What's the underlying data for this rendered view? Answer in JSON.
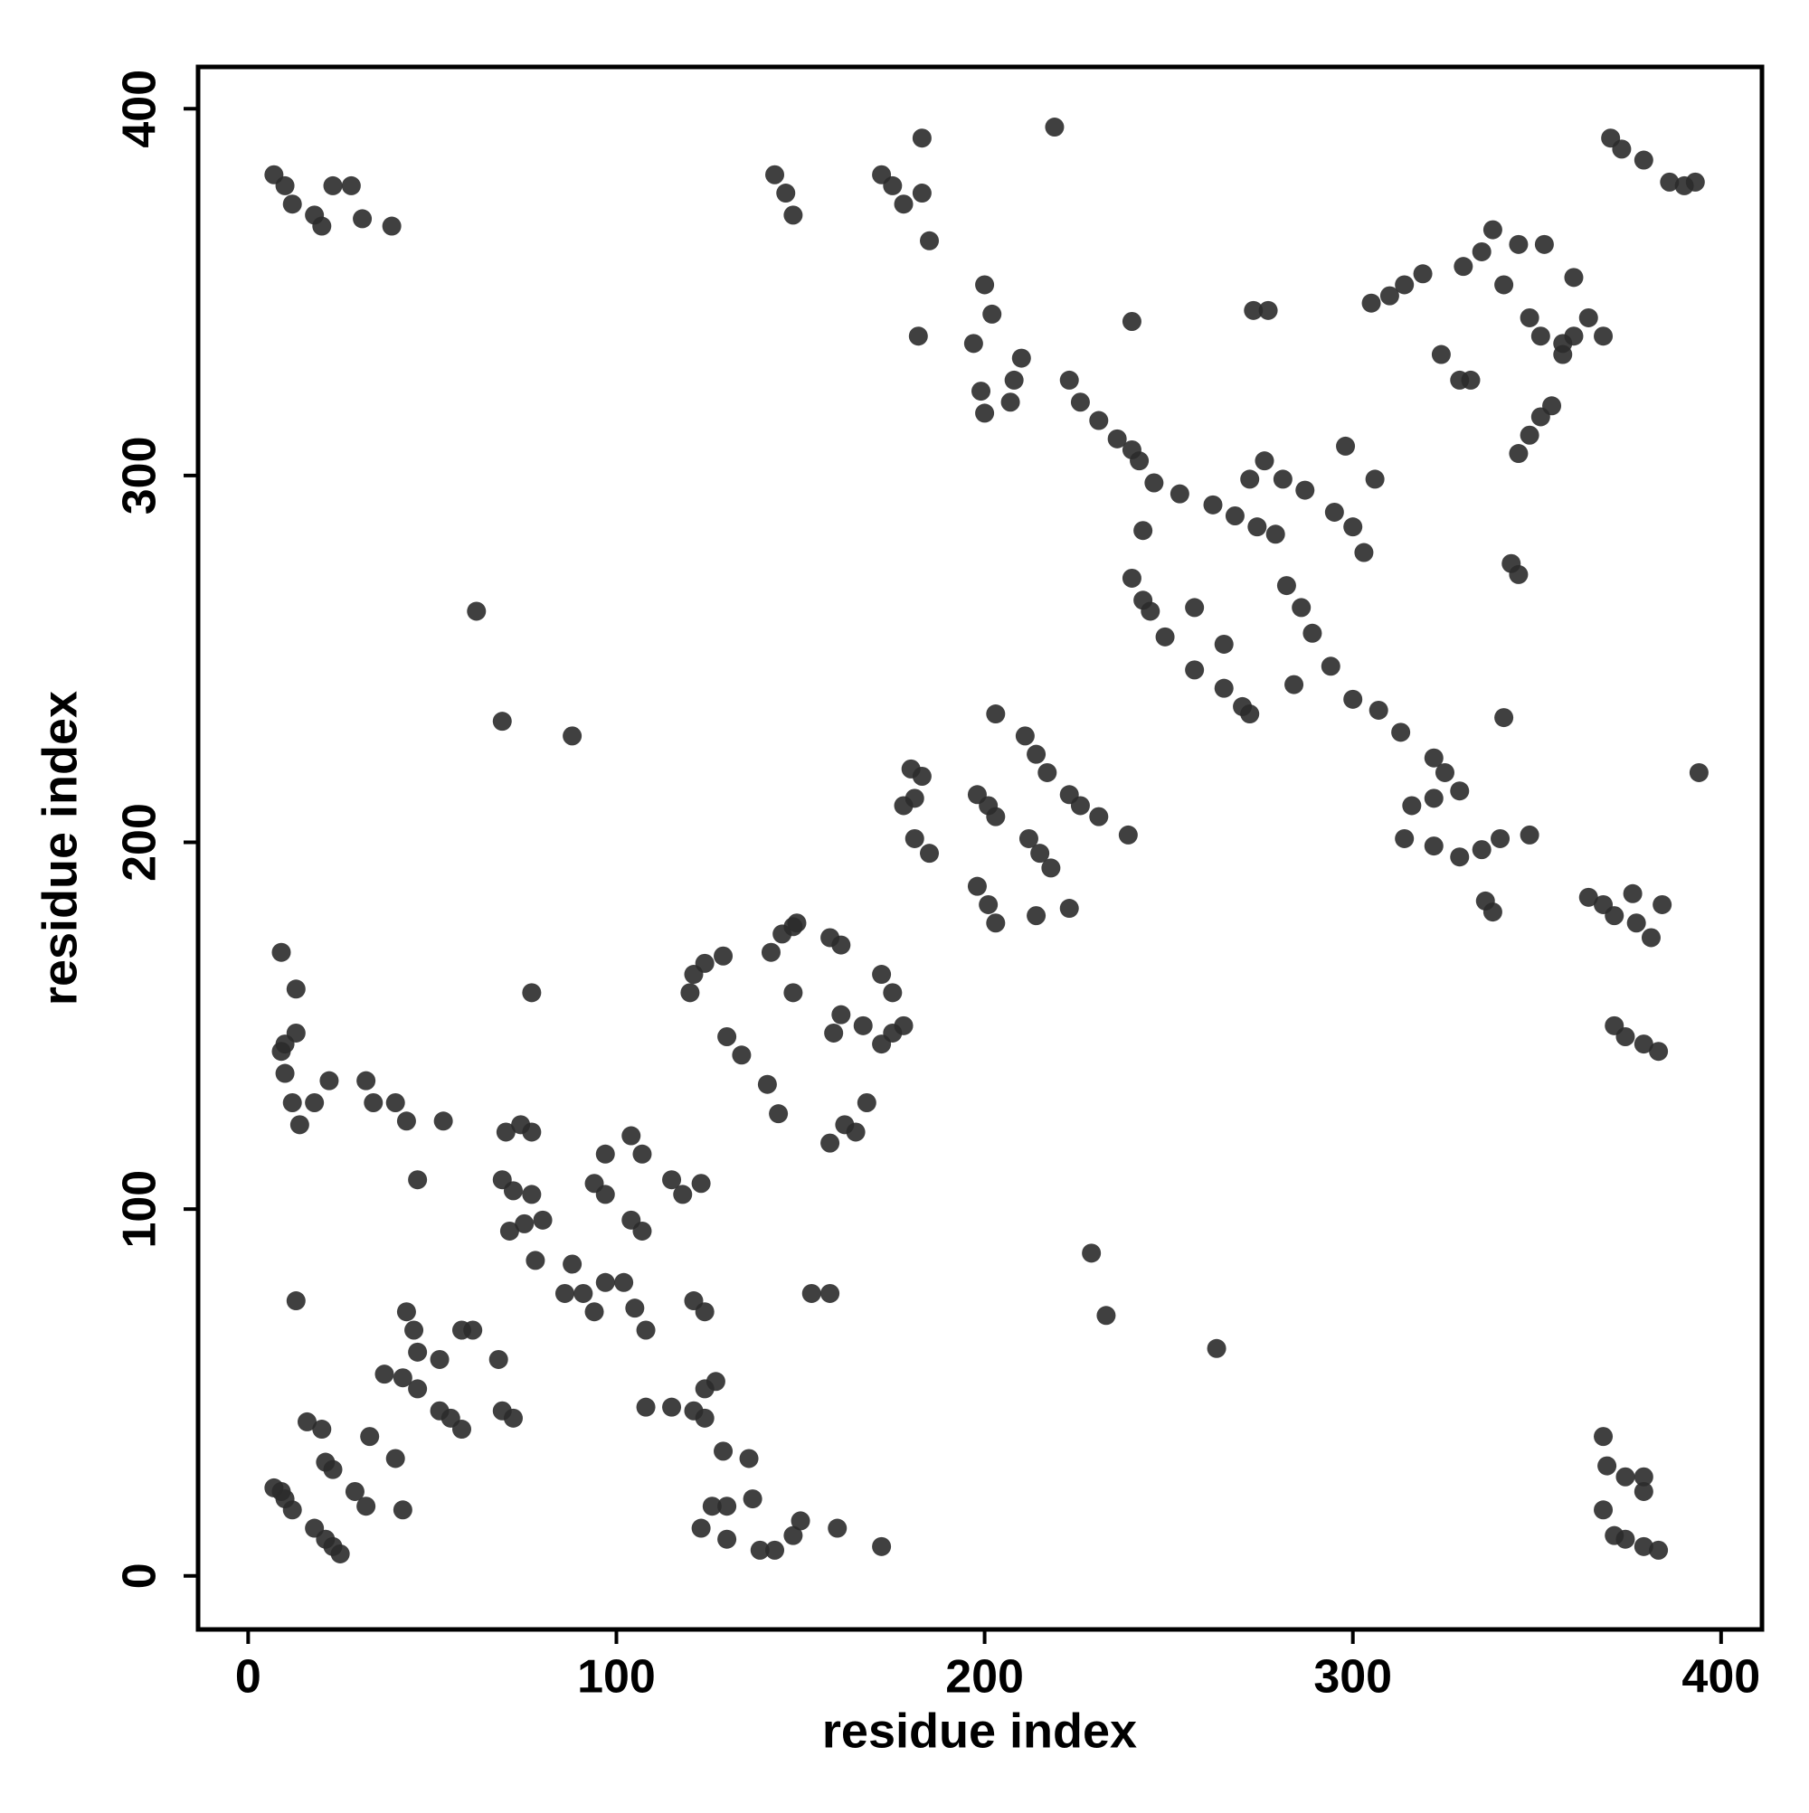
{
  "chart_data": {
    "type": "scatter",
    "x_label": "residue index",
    "y_label": "residue index",
    "color": "#2b2b2b",
    "grid": false,
    "xlim": [
      -13.6,
      411.1
    ],
    "ylim": [
      -14.6,
      411.4
    ],
    "xticks": [
      0,
      100,
      200,
      300,
      400
    ],
    "yticks": [
      0,
      100,
      200,
      300,
      400
    ],
    "x": [
      7,
      9,
      10,
      12,
      18,
      21,
      23,
      25,
      16,
      20,
      21,
      23,
      29,
      32,
      33,
      40,
      42,
      37,
      42,
      43,
      45,
      46,
      46,
      52,
      52,
      55,
      58,
      58,
      61,
      68,
      69,
      72,
      13,
      70,
      74,
      77,
      69,
      72,
      77,
      71,
      75,
      78,
      80,
      88,
      86,
      91,
      94,
      97,
      102,
      105,
      108,
      94,
      97,
      104,
      107,
      104,
      107,
      115,
      118,
      123,
      97,
      108,
      115,
      121,
      124,
      121,
      124,
      127,
      124,
      129,
      136,
      126,
      130,
      137,
      123,
      130,
      139,
      143,
      148,
      150,
      160,
      172,
      121,
      124,
      129,
      120,
      130,
      134,
      141,
      144,
      142,
      145,
      148,
      149,
      148,
      158,
      161,
      159,
      161,
      158,
      162,
      165,
      168,
      167,
      172,
      175,
      178,
      172,
      175,
      158,
      153,
      180,
      183,
      178,
      181,
      181,
      185,
      198,
      201,
      203,
      198,
      201,
      203,
      211,
      214,
      217,
      212,
      215,
      218,
      214,
      223,
      226,
      231,
      239,
      203,
      223,
      62,
      69,
      88,
      229,
      233,
      263,
      77,
      9,
      9,
      10,
      13,
      10,
      12,
      14,
      18,
      22,
      32,
      34,
      40,
      43,
      46,
      53,
      13,
      7,
      10,
      12,
      18,
      20,
      23,
      28,
      31,
      39,
      143,
      146,
      148,
      172,
      175,
      178,
      183,
      185,
      183,
      219,
      200,
      197,
      202,
      199,
      200,
      207,
      208,
      210,
      182,
      240,
      223,
      226,
      231,
      236,
      240,
      242,
      246,
      253,
      262,
      268,
      274,
      279,
      272,
      276,
      281,
      287,
      295,
      300,
      303,
      298,
      306,
      243,
      240,
      243,
      245,
      249,
      257,
      257,
      265,
      265,
      270,
      272,
      282,
      286,
      289,
      294,
      300,
      307,
      313,
      322,
      325,
      284,
      341,
      316,
      322,
      329,
      314,
      322,
      329,
      335,
      340,
      348,
      336,
      338,
      384,
      364,
      368,
      371,
      376,
      377,
      381,
      371,
      374,
      379,
      383,
      394,
      273,
      277,
      305,
      310,
      314,
      319,
      324,
      329,
      332,
      330,
      335,
      338,
      341,
      345,
      348,
      351,
      357,
      360,
      364,
      368,
      352,
      360,
      357,
      345,
      348,
      351,
      354,
      343,
      345,
      370,
      373,
      379,
      386,
      390,
      393,
      368,
      369,
      374,
      379,
      368,
      379,
      371,
      374,
      379,
      383
    ],
    "values": [
      24,
      23,
      21,
      18,
      13,
      10,
      8,
      6,
      42,
      40,
      31,
      29,
      23,
      19,
      38,
      32,
      18,
      55,
      54,
      72,
      67,
      61,
      51,
      59,
      45,
      43,
      40,
      67,
      67,
      59,
      45,
      43,
      75,
      121,
      123,
      121,
      108,
      105,
      104,
      94,
      96,
      86,
      97,
      85,
      77,
      77,
      72,
      80,
      80,
      73,
      67,
      107,
      104,
      97,
      94,
      120,
      115,
      108,
      104,
      107,
      115,
      46,
      46,
      45,
      43,
      75,
      72,
      53,
      51,
      34,
      32,
      19,
      19,
      21,
      13,
      10,
      7,
      7,
      11,
      15,
      13,
      8,
      164,
      167,
      169,
      159,
      147,
      142,
      134,
      126,
      170,
      175,
      177,
      178,
      159,
      174,
      172,
      148,
      153,
      118,
      123,
      121,
      129,
      150,
      145,
      148,
      150,
      164,
      159,
      77,
      77,
      220,
      218,
      210,
      212,
      201,
      197,
      213,
      210,
      207,
      188,
      183,
      178,
      229,
      224,
      219,
      201,
      197,
      193,
      180,
      213,
      210,
      207,
      202,
      235,
      182,
      263,
      233,
      229,
      88,
      71,
      62,
      159,
      170,
      143,
      145,
      148,
      137,
      129,
      123,
      129,
      135,
      135,
      129,
      129,
      124,
      108,
      124,
      160,
      382,
      379,
      374,
      371,
      368,
      379,
      379,
      370,
      368,
      382,
      377,
      371,
      382,
      379,
      374,
      377,
      364,
      392,
      395,
      352,
      336,
      344,
      323,
      317,
      320,
      326,
      332,
      338,
      342,
      326,
      320,
      315,
      310,
      307,
      304,
      298,
      295,
      292,
      289,
      286,
      284,
      299,
      304,
      299,
      296,
      290,
      286,
      279,
      308,
      299,
      285,
      272,
      266,
      263,
      256,
      264,
      247,
      254,
      242,
      237,
      235,
      270,
      264,
      257,
      248,
      239,
      236,
      230,
      223,
      219,
      243,
      234,
      210,
      212,
      214,
      201,
      199,
      196,
      198,
      201,
      202,
      184,
      181,
      183,
      185,
      183,
      180,
      186,
      178,
      174,
      150,
      147,
      145,
      143,
      219,
      345,
      345,
      347,
      349,
      352,
      355,
      333,
      326,
      326,
      357,
      361,
      367,
      352,
      363,
      343,
      338,
      336,
      338,
      343,
      338,
      363,
      354,
      333,
      306,
      311,
      316,
      319,
      276,
      273,
      392,
      389,
      386,
      380,
      379,
      380,
      38,
      30,
      27,
      27,
      18,
      23,
      11,
      10,
      8,
      7
    ]
  }
}
